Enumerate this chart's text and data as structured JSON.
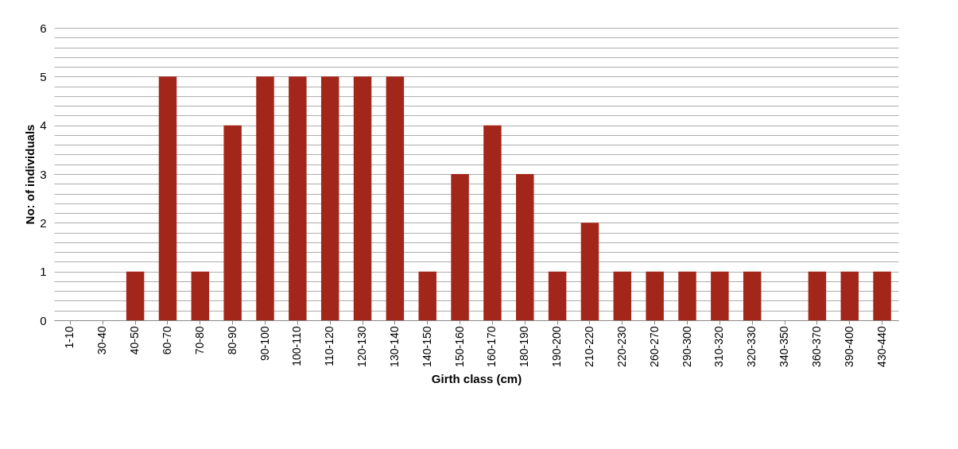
{
  "chart_data": {
    "type": "bar",
    "xlabel": "Girth class (cm)",
    "ylabel": "No: of individuals",
    "categories": [
      "1-10",
      "30-40",
      "40-50",
      "60-70",
      "70-80",
      "80-90",
      "90-100",
      "100-110",
      "110-120",
      "120-130",
      "130-140",
      "140-150",
      "150-160",
      "160-170",
      "180-190",
      "190-200",
      "210-220",
      "220-230",
      "260-270",
      "290-300",
      "310-320",
      "320-330",
      "340-350",
      "360-370",
      "390-400",
      "430-440"
    ],
    "values": [
      0,
      0,
      1,
      5,
      1,
      4,
      5,
      5,
      5,
      5,
      5,
      1,
      3,
      4,
      3,
      1,
      2,
      1,
      1,
      1,
      1,
      1,
      0,
      1,
      1,
      1
    ],
    "color": "#a3261a",
    "ylim": [
      0,
      6
    ],
    "yticks": [
      0,
      {
        "value": 0.2,
        "label": null
      },
      {
        "value": 0.4,
        "label": null
      },
      {
        "value": 0.6,
        "label": null
      },
      {
        "value": 0.8,
        "label": null
      },
      1,
      {
        "value": 1.2,
        "label": null
      },
      {
        "value": 1.4,
        "label": null
      },
      {
        "value": 1.6,
        "label": null
      },
      {
        "value": 1.8,
        "label": null
      },
      2,
      {
        "value": 2.2,
        "label": null
      },
      {
        "value": 2.4,
        "label": null
      },
      {
        "value": 2.6,
        "label": null
      },
      {
        "value": 2.8,
        "label": null
      },
      3,
      {
        "value": 3.2,
        "label": null
      },
      {
        "value": 3.4,
        "label": null
      },
      {
        "value": 3.6,
        "label": null
      },
      {
        "value": 3.8,
        "label": null
      },
      4,
      {
        "value": 4.2,
        "label": null
      },
      {
        "value": 4.4,
        "label": null
      },
      {
        "value": 4.6,
        "label": null
      },
      {
        "value": 4.8,
        "label": null
      },
      5,
      {
        "value": 5.2,
        "label": null
      },
      {
        "value": 5.4,
        "label": null
      },
      {
        "value": 5.6,
        "label": null
      },
      {
        "value": 5.8,
        "label": null
      },
      6
    ],
    "grid": true
  }
}
